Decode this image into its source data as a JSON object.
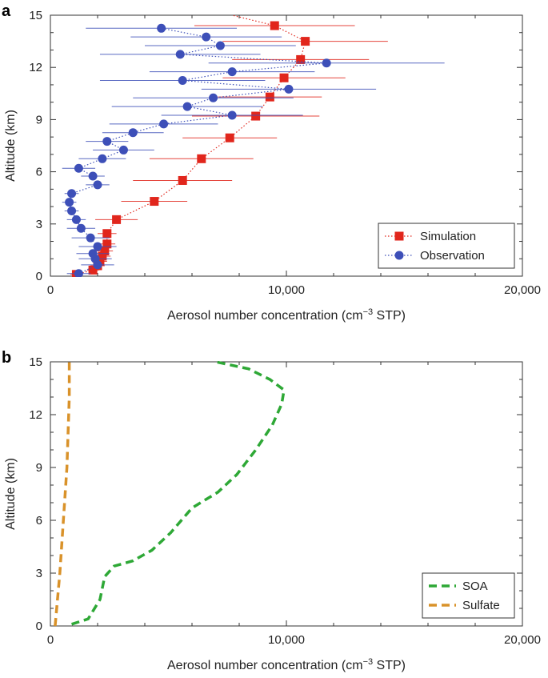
{
  "chart_data": [
    {
      "panel_label": "a",
      "type": "scatter",
      "xlabel_pre": "Aerosol number concentration (cm",
      "xlabel_sup": "−3",
      "xlabel_post": " STP)",
      "ylabel": "Altitude (km)",
      "xlim": [
        0,
        20000
      ],
      "ylim": [
        0,
        15
      ],
      "xticks": [
        0,
        10000,
        20000
      ],
      "xtick_labels": [
        "0",
        "10,000",
        "20,000"
      ],
      "yticks": [
        0,
        3,
        6,
        9,
        12,
        15
      ],
      "ytick_labels": [
        "0",
        "3",
        "6",
        "9",
        "12",
        "15"
      ],
      "legend_position": "bottom-right",
      "series": [
        {
          "name": "Simulation",
          "color": "#e1261c",
          "marker": "square",
          "line": "dotted",
          "points": [
            {
              "x": 1100,
              "y": 0.1,
              "xerr": 250
            },
            {
              "x": 1800,
              "y": 0.35,
              "xerr": 250
            },
            {
              "x": 2000,
              "y": 0.6,
              "xerr": 300
            },
            {
              "x": 2100,
              "y": 0.85,
              "xerr": 300
            },
            {
              "x": 2200,
              "y": 1.15,
              "xerr": 350
            },
            {
              "x": 2300,
              "y": 1.45,
              "xerr": 350
            },
            {
              "x": 2400,
              "y": 1.85,
              "xerr": 350
            },
            {
              "x": 2400,
              "y": 2.45,
              "xerr": 400
            },
            {
              "x": 2800,
              "y": 3.25,
              "xerr": 900
            },
            {
              "x": 4400,
              "y": 4.3,
              "xerr": 1400
            },
            {
              "x": 5600,
              "y": 5.5,
              "xerr": 2100
            },
            {
              "x": 6400,
              "y": 6.75,
              "xerr": 2200
            },
            {
              "x": 7600,
              "y": 7.95,
              "xerr": 2000
            },
            {
              "x": 8700,
              "y": 9.2,
              "xerr": 2700
            },
            {
              "x": 9300,
              "y": 10.3,
              "xerr": 2200
            },
            {
              "x": 9900,
              "y": 11.4,
              "xerr": 2600
            },
            {
              "x": 10600,
              "y": 12.45,
              "xerr": 2900
            },
            {
              "x": 10800,
              "y": 13.5,
              "xerr": 3500
            },
            {
              "x": 9500,
              "y": 14.4,
              "xerr": 3400
            },
            {
              "x": 7700,
              "y": 15.0,
              "xerr": 0
            }
          ]
        },
        {
          "name": "Observation",
          "color": "#3d4fb8",
          "marker": "circle",
          "line": "dotted",
          "points": [
            {
              "x": 1200,
              "y": 0.15,
              "xerr": 500
            },
            {
              "x": 2000,
              "y": 0.65,
              "xerr": 700
            },
            {
              "x": 1900,
              "y": 1.0,
              "xerr": 700
            },
            {
              "x": 1800,
              "y": 1.3,
              "xerr": 700
            },
            {
              "x": 2000,
              "y": 1.7,
              "xerr": 800
            },
            {
              "x": 1700,
              "y": 2.2,
              "xerr": 800
            },
            {
              "x": 1300,
              "y": 2.75,
              "xerr": 600
            },
            {
              "x": 1100,
              "y": 3.25,
              "xerr": 400
            },
            {
              "x": 900,
              "y": 3.75,
              "xerr": 300
            },
            {
              "x": 800,
              "y": 4.25,
              "xerr": 300
            },
            {
              "x": 900,
              "y": 4.75,
              "xerr": 300
            },
            {
              "x": 2000,
              "y": 5.25,
              "xerr": 500
            },
            {
              "x": 1800,
              "y": 5.75,
              "xerr": 500
            },
            {
              "x": 1200,
              "y": 6.2,
              "xerr": 700
            },
            {
              "x": 2200,
              "y": 6.75,
              "xerr": 1000
            },
            {
              "x": 3100,
              "y": 7.25,
              "xerr": 1300
            },
            {
              "x": 2400,
              "y": 7.75,
              "xerr": 900
            },
            {
              "x": 3500,
              "y": 8.25,
              "xerr": 1300
            },
            {
              "x": 4800,
              "y": 8.75,
              "xerr": 2300
            },
            {
              "x": 7700,
              "y": 9.25,
              "xerr": 3000
            },
            {
              "x": 5800,
              "y": 9.75,
              "xerr": 3200
            },
            {
              "x": 6900,
              "y": 10.25,
              "xerr": 3400
            },
            {
              "x": 10100,
              "y": 10.75,
              "xerr": 3700
            },
            {
              "x": 5600,
              "y": 11.25,
              "xerr": 3500
            },
            {
              "x": 7700,
              "y": 11.75,
              "xerr": 3500
            },
            {
              "x": 11700,
              "y": 12.25,
              "xerr": 5000
            },
            {
              "x": 5500,
              "y": 12.75,
              "xerr": 3400
            },
            {
              "x": 7200,
              "y": 13.25,
              "xerr": 3200
            },
            {
              "x": 6600,
              "y": 13.75,
              "xerr": 3200
            },
            {
              "x": 4700,
              "y": 14.25,
              "xerr": 3200
            }
          ]
        }
      ]
    },
    {
      "panel_label": "b",
      "type": "line",
      "xlabel_pre": "Aerosol number concentration (cm",
      "xlabel_sup": "−3",
      "xlabel_post": " STP)",
      "ylabel": "Altitude (km)",
      "xlim": [
        0,
        20000
      ],
      "ylim": [
        0,
        15
      ],
      "xticks": [
        0,
        10000,
        20000
      ],
      "xtick_labels": [
        "0",
        "10,000",
        "20,000"
      ],
      "yticks": [
        0,
        3,
        6,
        9,
        12,
        15
      ],
      "ytick_labels": [
        "0",
        "3",
        "6",
        "9",
        "12",
        "15"
      ],
      "legend_position": "bottom-right",
      "series": [
        {
          "name": "SOA",
          "color": "#2ea836",
          "line": "dashed",
          "points": [
            {
              "x": 900,
              "y": 0.1
            },
            {
              "x": 1600,
              "y": 0.4
            },
            {
              "x": 2100,
              "y": 1.5
            },
            {
              "x": 2300,
              "y": 2.8
            },
            {
              "x": 2700,
              "y": 3.4
            },
            {
              "x": 3500,
              "y": 3.7
            },
            {
              "x": 4300,
              "y": 4.3
            },
            {
              "x": 5100,
              "y": 5.3
            },
            {
              "x": 6000,
              "y": 6.7
            },
            {
              "x": 7100,
              "y": 7.6
            },
            {
              "x": 7900,
              "y": 8.6
            },
            {
              "x": 8700,
              "y": 10.0
            },
            {
              "x": 9400,
              "y": 11.4
            },
            {
              "x": 9800,
              "y": 12.6
            },
            {
              "x": 9900,
              "y": 13.4
            },
            {
              "x": 9300,
              "y": 14.0
            },
            {
              "x": 8400,
              "y": 14.6
            },
            {
              "x": 7000,
              "y": 15.0
            }
          ]
        },
        {
          "name": "Sulfate",
          "color": "#d9922a",
          "line": "dashed",
          "points": [
            {
              "x": 200,
              "y": 0.0
            },
            {
              "x": 300,
              "y": 1.5
            },
            {
              "x": 400,
              "y": 3.0
            },
            {
              "x": 500,
              "y": 5.0
            },
            {
              "x": 600,
              "y": 7.0
            },
            {
              "x": 700,
              "y": 9.0
            },
            {
              "x": 750,
              "y": 11.0
            },
            {
              "x": 800,
              "y": 13.0
            },
            {
              "x": 800,
              "y": 15.0
            }
          ]
        }
      ]
    }
  ]
}
